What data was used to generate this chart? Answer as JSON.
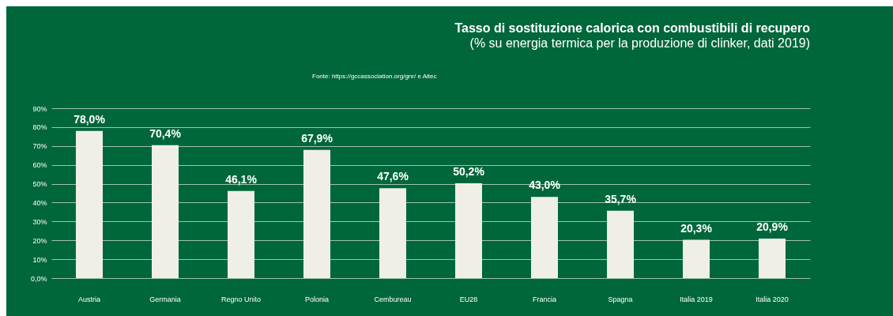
{
  "chart_data": {
    "type": "bar",
    "title": "Tasso di sostituzione calorica con combustibili di recupero",
    "subtitle": "(% su energia termica per la produzione di clinker, dati 2019)",
    "annotations": [
      "Fonte: https://gccassociation.org/gnr/ e Aitec"
    ],
    "categories": [
      "Austria",
      "Germania",
      "Regno Unito",
      "Polonia",
      "Cembureau",
      "EU28",
      "Francia",
      "Spagna",
      "Italia 2019",
      "Italia 2020"
    ],
    "values": [
      78.0,
      70.4,
      46.1,
      67.9,
      47.6,
      50.2,
      43.0,
      35.7,
      20.3,
      20.9
    ],
    "value_labels": [
      "78,0%",
      "70,4%",
      "46,1%",
      "67,9%",
      "47,6%",
      "50,2%",
      "43,0%",
      "35,7%",
      "20,3%",
      "20,9%"
    ],
    "color": "#efefe8",
    "ylim": [
      0,
      90
    ],
    "yticks": [
      {
        "value": 0,
        "label": "0,0%"
      },
      {
        "value": 10,
        "label": "10%"
      },
      {
        "value": 20,
        "label": "20%"
      },
      {
        "value": 30,
        "label": "30%"
      },
      {
        "value": 40,
        "label": "40%"
      },
      {
        "value": 50,
        "label": "50%"
      },
      {
        "value": 60,
        "label": "60%"
      },
      {
        "value": 70,
        "label": "70%"
      },
      {
        "value": 80,
        "label": "80%"
      },
      {
        "value": 90,
        "label": "90%"
      }
    ],
    "grid": "y"
  }
}
